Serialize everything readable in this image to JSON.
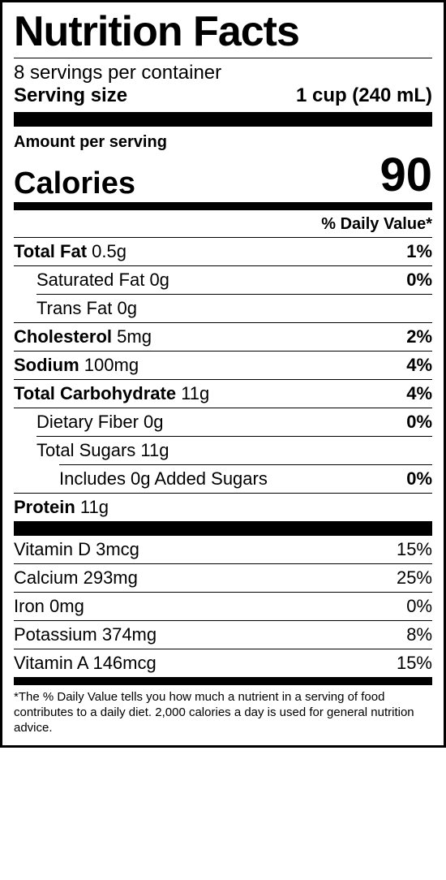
{
  "title": "Nutrition Facts",
  "servings_per_container": "8 servings per container",
  "serving_size_label": "Serving size",
  "serving_size_value": "1 cup (240 mL)",
  "amount_per_serving": "Amount per serving",
  "calories_label": "Calories",
  "calories_value": "90",
  "dv_header": "% Daily Value*",
  "nutrients": {
    "total_fat": {
      "label": "Total Fat",
      "amount": "0.5g",
      "dv": "1%"
    },
    "saturated_fat": {
      "label": "Saturated Fat",
      "amount": "0g",
      "dv": "0%"
    },
    "trans_fat": {
      "label": "Trans Fat",
      "amount": "0g"
    },
    "cholesterol": {
      "label": "Cholesterol",
      "amount": "5mg",
      "dv": "2%"
    },
    "sodium": {
      "label": "Sodium",
      "amount": "100mg",
      "dv": "4%"
    },
    "total_carb": {
      "label": "Total Carbohydrate",
      "amount": "11g",
      "dv": "4%"
    },
    "dietary_fiber": {
      "label": "Dietary Fiber",
      "amount": "0g",
      "dv": "0%"
    },
    "total_sugars": {
      "label": "Total Sugars",
      "amount": "11g"
    },
    "added_sugars": {
      "text": "Includes 0g Added Sugars",
      "dv": "0%"
    },
    "protein": {
      "label": "Protein",
      "amount": "11g"
    }
  },
  "vitamins": {
    "vitamin_d": {
      "label": "Vitamin D",
      "amount": "3mcg",
      "dv": "15%"
    },
    "calcium": {
      "label": "Calcium",
      "amount": "293mg",
      "dv": "25%"
    },
    "iron": {
      "label": "Iron",
      "amount": "0mg",
      "dv": "0%"
    },
    "potassium": {
      "label": "Potassium",
      "amount": "374mg",
      "dv": "8%"
    },
    "vitamin_a": {
      "label": "Vitamin A",
      "amount": "146mcg",
      "dv": "15%"
    }
  },
  "footnote": "*The % Daily Value tells you how much a nutrient in a serving of food contributes to a daily diet. 2,000 calories a day is used for general nutrition advice."
}
